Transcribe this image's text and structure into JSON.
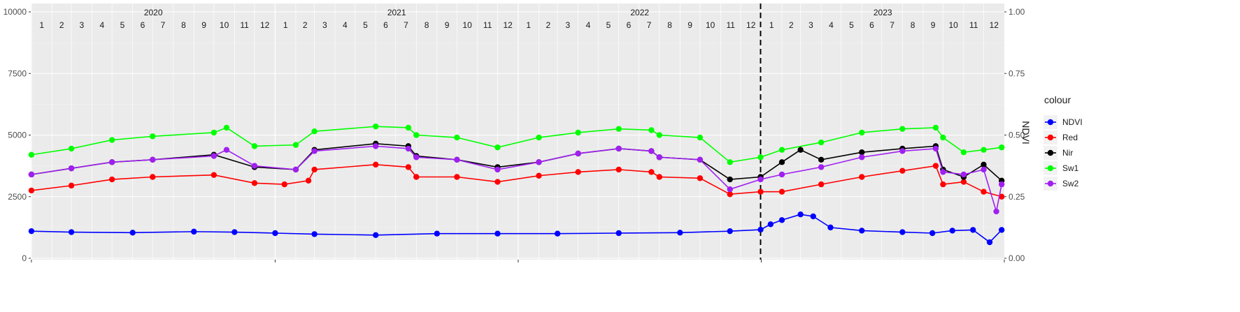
{
  "chart_data": {
    "type": "line",
    "x_axis": {
      "years": [
        "2020",
        "2021",
        "2022",
        "2023"
      ],
      "month_labels": [
        "1",
        "2",
        "3",
        "4",
        "5",
        "6",
        "7",
        "8",
        "9",
        "10",
        "11",
        "12"
      ],
      "range": [
        "2020-01-01",
        "2024-01-01"
      ]
    },
    "y_left": {
      "ylim": [
        0,
        10000
      ],
      "ticks": [
        "0",
        "2500",
        "5000",
        "7500",
        "10000"
      ]
    },
    "y_right": {
      "label": "NDVI",
      "ylim": [
        0,
        1
      ],
      "ticks": [
        "0.00",
        "0.25",
        "0.50",
        "0.75",
        "1.00"
      ]
    },
    "vline": {
      "x": "2022-12-31",
      "style": "dashed"
    },
    "legend": {
      "title": "colour",
      "position": "right"
    },
    "grid": true,
    "series": [
      {
        "name": "NDVI",
        "color": "#0000ff",
        "axis": "right",
        "points": [
          [
            "2020-01-01",
            0.11
          ],
          [
            "2020-03-01",
            0.106
          ],
          [
            "2020-06-01",
            0.104
          ],
          [
            "2020-09-01",
            0.108
          ],
          [
            "2020-11-01",
            0.106
          ],
          [
            "2021-01-01",
            0.102
          ],
          [
            "2021-03-01",
            0.098
          ],
          [
            "2021-06-01",
            0.094
          ],
          [
            "2021-09-01",
            0.1
          ],
          [
            "2021-12-01",
            0.1
          ],
          [
            "2022-03-01",
            0.1
          ],
          [
            "2022-06-01",
            0.102
          ],
          [
            "2022-09-01",
            0.104
          ],
          [
            "2022-11-15",
            0.11
          ],
          [
            "2022-12-31",
            0.116
          ],
          [
            "2023-01-15",
            0.138
          ],
          [
            "2023-02-01",
            0.155
          ],
          [
            "2023-03-01",
            0.178
          ],
          [
            "2023-03-20",
            0.17
          ],
          [
            "2023-04-15",
            0.125
          ],
          [
            "2023-06-01",
            0.112
          ],
          [
            "2023-08-01",
            0.106
          ],
          [
            "2023-09-15",
            0.102
          ],
          [
            "2023-10-15",
            0.112
          ],
          [
            "2023-11-15",
            0.115
          ],
          [
            "2023-12-10",
            0.065
          ],
          [
            "2023-12-28",
            0.115
          ]
        ]
      },
      {
        "name": "Red",
        "color": "#ff0000",
        "axis": "left",
        "points": [
          [
            "2020-01-01",
            2750
          ],
          [
            "2020-03-01",
            2950
          ],
          [
            "2020-05-01",
            3200
          ],
          [
            "2020-07-01",
            3300
          ],
          [
            "2020-10-01",
            3380
          ],
          [
            "2020-12-01",
            3050
          ],
          [
            "2021-01-15",
            3000
          ],
          [
            "2021-02-20",
            3150
          ],
          [
            "2021-03-01",
            3600
          ],
          [
            "2021-06-01",
            3800
          ],
          [
            "2021-07-20",
            3700
          ],
          [
            "2021-08-01",
            3300
          ],
          [
            "2021-10-01",
            3300
          ],
          [
            "2021-12-01",
            3100
          ],
          [
            "2022-02-01",
            3350
          ],
          [
            "2022-04-01",
            3500
          ],
          [
            "2022-06-01",
            3600
          ],
          [
            "2022-07-20",
            3500
          ],
          [
            "2022-08-01",
            3300
          ],
          [
            "2022-10-01",
            3250
          ],
          [
            "2022-11-15",
            2600
          ],
          [
            "2022-12-31",
            2700
          ],
          [
            "2023-02-01",
            2700
          ],
          [
            "2023-04-01",
            3000
          ],
          [
            "2023-06-01",
            3300
          ],
          [
            "2023-08-01",
            3550
          ],
          [
            "2023-09-20",
            3750
          ],
          [
            "2023-10-01",
            3000
          ],
          [
            "2023-11-01",
            3100
          ],
          [
            "2023-12-01",
            2700
          ],
          [
            "2023-12-28",
            2500
          ]
        ]
      },
      {
        "name": "Nir",
        "color": "#000000",
        "axis": "left",
        "points": [
          [
            "2020-01-01",
            3400
          ],
          [
            "2020-03-01",
            3650
          ],
          [
            "2020-05-01",
            3900
          ],
          [
            "2020-07-01",
            4000
          ],
          [
            "2020-10-01",
            4200
          ],
          [
            "2020-12-01",
            3700
          ],
          [
            "2021-02-01",
            3600
          ],
          [
            "2021-03-01",
            4400
          ],
          [
            "2021-06-01",
            4650
          ],
          [
            "2021-07-20",
            4550
          ],
          [
            "2021-08-01",
            4150
          ],
          [
            "2021-10-01",
            4000
          ],
          [
            "2021-12-01",
            3700
          ],
          [
            "2022-02-01",
            3900
          ],
          [
            "2022-04-01",
            4250
          ],
          [
            "2022-06-01",
            4450
          ],
          [
            "2022-07-20",
            4350
          ],
          [
            "2022-08-01",
            4100
          ],
          [
            "2022-10-01",
            4000
          ],
          [
            "2022-11-15",
            3200
          ],
          [
            "2022-12-31",
            3300
          ],
          [
            "2023-02-01",
            3900
          ],
          [
            "2023-03-01",
            4400
          ],
          [
            "2023-04-01",
            4000
          ],
          [
            "2023-06-01",
            4300
          ],
          [
            "2023-08-01",
            4450
          ],
          [
            "2023-09-20",
            4550
          ],
          [
            "2023-10-01",
            3600
          ],
          [
            "2023-11-01",
            3300
          ],
          [
            "2023-12-01",
            3800
          ],
          [
            "2023-12-28",
            3150
          ]
        ]
      },
      {
        "name": "Sw1",
        "color": "#00ff00",
        "axis": "left",
        "points": [
          [
            "2020-01-01",
            4200
          ],
          [
            "2020-03-01",
            4450
          ],
          [
            "2020-05-01",
            4800
          ],
          [
            "2020-07-01",
            4950
          ],
          [
            "2020-10-01",
            5100
          ],
          [
            "2020-10-20",
            5300
          ],
          [
            "2020-12-01",
            4550
          ],
          [
            "2021-02-01",
            4600
          ],
          [
            "2021-03-01",
            5150
          ],
          [
            "2021-06-01",
            5350
          ],
          [
            "2021-07-20",
            5300
          ],
          [
            "2021-08-01",
            5000
          ],
          [
            "2021-10-01",
            4900
          ],
          [
            "2021-12-01",
            4500
          ],
          [
            "2022-02-01",
            4900
          ],
          [
            "2022-04-01",
            5100
          ],
          [
            "2022-06-01",
            5250
          ],
          [
            "2022-07-20",
            5200
          ],
          [
            "2022-08-01",
            5000
          ],
          [
            "2022-10-01",
            4900
          ],
          [
            "2022-11-15",
            3900
          ],
          [
            "2022-12-31",
            4100
          ],
          [
            "2023-02-01",
            4400
          ],
          [
            "2023-04-01",
            4700
          ],
          [
            "2023-06-01",
            5100
          ],
          [
            "2023-08-01",
            5250
          ],
          [
            "2023-09-20",
            5300
          ],
          [
            "2023-10-01",
            4900
          ],
          [
            "2023-11-01",
            4300
          ],
          [
            "2023-12-01",
            4400
          ],
          [
            "2023-12-28",
            4500
          ]
        ]
      },
      {
        "name": "Sw2",
        "color": "#a020f0",
        "axis": "left",
        "points": [
          [
            "2020-01-01",
            3400
          ],
          [
            "2020-03-01",
            3650
          ],
          [
            "2020-05-01",
            3900
          ],
          [
            "2020-07-01",
            4000
          ],
          [
            "2020-10-01",
            4150
          ],
          [
            "2020-10-20",
            4400
          ],
          [
            "2020-12-01",
            3750
          ],
          [
            "2021-02-01",
            3600
          ],
          [
            "2021-03-01",
            4350
          ],
          [
            "2021-06-01",
            4550
          ],
          [
            "2021-07-20",
            4450
          ],
          [
            "2021-08-01",
            4100
          ],
          [
            "2021-10-01",
            4000
          ],
          [
            "2021-12-01",
            3600
          ],
          [
            "2022-02-01",
            3900
          ],
          [
            "2022-04-01",
            4250
          ],
          [
            "2022-06-01",
            4450
          ],
          [
            "2022-07-20",
            4350
          ],
          [
            "2022-08-01",
            4100
          ],
          [
            "2022-10-01",
            4000
          ],
          [
            "2022-11-15",
            2800
          ],
          [
            "2022-12-31",
            3200
          ],
          [
            "2023-02-01",
            3400
          ],
          [
            "2023-04-01",
            3700
          ],
          [
            "2023-06-01",
            4100
          ],
          [
            "2023-08-01",
            4350
          ],
          [
            "2023-09-20",
            4450
          ],
          [
            "2023-10-01",
            3500
          ],
          [
            "2023-11-01",
            3400
          ],
          [
            "2023-12-01",
            3600
          ],
          [
            "2023-12-20",
            1900
          ],
          [
            "2023-12-28",
            3000
          ]
        ]
      }
    ]
  }
}
